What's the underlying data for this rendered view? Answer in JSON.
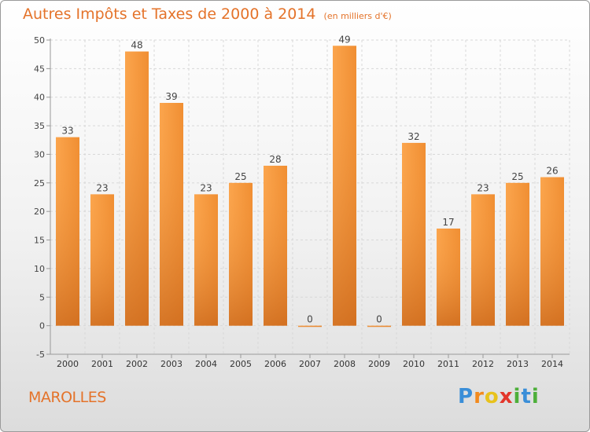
{
  "title": "Autres Impôts et Taxes de 2000 à 2014",
  "title_unit": "(en milliers d'€)",
  "commune": "MAROLLES",
  "logo": {
    "text": "Proxiti",
    "letters": [
      "P",
      "r",
      "o",
      "x",
      "i",
      "t",
      "i"
    ]
  },
  "colors": {
    "accent": "#e4732a",
    "bar_light": "#fba54d",
    "bar_dark": "#cf6a17",
    "axis": "#999999",
    "grid": "#d8d8d8"
  },
  "chart_data": {
    "type": "bar",
    "categories": [
      "2000",
      "2001",
      "2002",
      "2003",
      "2004",
      "2005",
      "2006",
      "2007",
      "2008",
      "2009",
      "2010",
      "2011",
      "2012",
      "2013",
      "2014"
    ],
    "values": [
      33,
      23,
      48,
      39,
      23,
      25,
      28,
      0,
      49,
      0,
      32,
      17,
      23,
      25,
      26
    ],
    "ylim": [
      -5,
      50
    ],
    "yticks": [
      -5,
      0,
      5,
      10,
      15,
      20,
      25,
      30,
      35,
      40,
      45,
      50
    ],
    "grid": true,
    "legend": "none"
  }
}
